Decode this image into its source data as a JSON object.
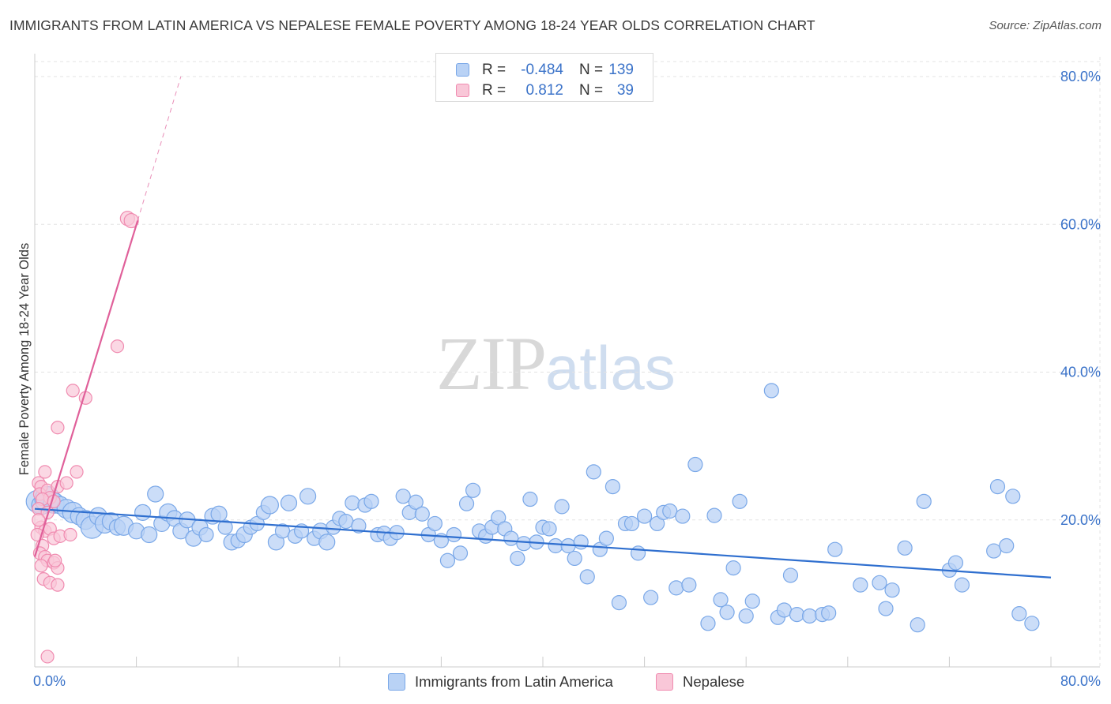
{
  "title": "IMMIGRANTS FROM LATIN AMERICA VS NEPALESE FEMALE POVERTY AMONG 18-24 YEAR OLDS CORRELATION CHART",
  "source": "Source: ZipAtlas.com",
  "watermark": {
    "zip": "ZIP",
    "atlas": "atlas"
  },
  "colors": {
    "blue": "#7aa8e8",
    "blue_line": "#2f6fcf",
    "blue_fill": "#b9d2f5",
    "pink": "#f08bb0",
    "pink_line": "#e0609a",
    "pink_fill": "#f9c7d8",
    "tick_text": "#3b73c9",
    "grid": "#e3e3e3"
  },
  "legend": {
    "rows": [
      {
        "r_label": "R =",
        "r_value": "-0.484",
        "n_label": "N =",
        "n_value": "139"
      },
      {
        "r_label": "R =",
        "r_value": "0.812",
        "n_label": "N =",
        "n_value": "39"
      }
    ]
  },
  "chart_data": {
    "type": "scatter",
    "title": "IMMIGRANTS FROM LATIN AMERICA VS NEPALESE FEMALE POVERTY AMONG 18-24 YEAR OLDS CORRELATION CHART",
    "xlabel": "",
    "ylabel": "Female Poverty Among 18-24 Year Olds",
    "xlim": [
      0,
      80
    ],
    "ylim": [
      0,
      80
    ],
    "x_tick_labels": [
      "0.0%",
      "80.0%"
    ],
    "y_tick_labels": [
      "20.0%",
      "40.0%",
      "60.0%",
      "80.0%"
    ],
    "y_ticks": [
      20,
      40,
      60,
      80
    ],
    "grid": true,
    "legend_position": "top-center",
    "series": [
      {
        "name": "Immigrants from Latin America",
        "color": "#7aa8e8",
        "r": -0.484,
        "n": 139,
        "trend": {
          "x": [
            0,
            80
          ],
          "y": [
            21.5,
            12.2
          ]
        },
        "points": [
          [
            0.2,
            22.5,
            14
          ],
          [
            0.5,
            22,
            12
          ],
          [
            1.0,
            22.8,
            16
          ],
          [
            1.5,
            22.3,
            13
          ],
          [
            2.0,
            22,
            11
          ],
          [
            2.5,
            21.5,
            12
          ],
          [
            3.0,
            21,
            13
          ],
          [
            3.5,
            20.5,
            11
          ],
          [
            4.0,
            20,
            12
          ],
          [
            4.5,
            19,
            14
          ],
          [
            5.0,
            20.5,
            11
          ],
          [
            5.5,
            19.5,
            12
          ],
          [
            6.0,
            19.8,
            11
          ],
          [
            6.5,
            19,
            10
          ],
          [
            7.0,
            19.2,
            12
          ],
          [
            8.0,
            18.5,
            10
          ],
          [
            8.5,
            21,
            10
          ],
          [
            9.0,
            18,
            10
          ],
          [
            9.5,
            23.5,
            10
          ],
          [
            10.0,
            19.5,
            10
          ],
          [
            10.5,
            21,
            11
          ],
          [
            11.0,
            20.2,
            10
          ],
          [
            11.5,
            18.5,
            10
          ],
          [
            12.0,
            20,
            10
          ],
          [
            12.5,
            17.5,
            10
          ],
          [
            13.0,
            19,
            10
          ],
          [
            13.5,
            18,
            9
          ],
          [
            14.0,
            20.5,
            10
          ],
          [
            14.5,
            20.8,
            10
          ],
          [
            15.0,
            19,
            9
          ],
          [
            15.5,
            17,
            10
          ],
          [
            16.0,
            17.2,
            9
          ],
          [
            16.5,
            18,
            10
          ],
          [
            17.0,
            19,
            9
          ],
          [
            17.5,
            19.5,
            9
          ],
          [
            18.0,
            21,
            9
          ],
          [
            18.5,
            22,
            11
          ],
          [
            19.0,
            17,
            10
          ],
          [
            19.5,
            18.5,
            9
          ],
          [
            20.0,
            22.3,
            10
          ],
          [
            20.5,
            17.8,
            9
          ],
          [
            21.0,
            18.5,
            9
          ],
          [
            21.5,
            23.2,
            10
          ],
          [
            22.0,
            17.5,
            9
          ],
          [
            22.5,
            18.5,
            10
          ],
          [
            23.0,
            17,
            10
          ],
          [
            23.5,
            19,
            9
          ],
          [
            24.0,
            20.2,
            9
          ],
          [
            24.5,
            19.8,
            9
          ],
          [
            25.0,
            22.3,
            9
          ],
          [
            25.5,
            19.2,
            9
          ],
          [
            26.0,
            22,
            9
          ],
          [
            26.5,
            22.5,
            9
          ],
          [
            27.0,
            18,
            9
          ],
          [
            27.5,
            18.2,
            9
          ],
          [
            28.0,
            17.5,
            9
          ],
          [
            28.5,
            18.3,
            9
          ],
          [
            29.0,
            23.2,
            9
          ],
          [
            29.5,
            21,
            9
          ],
          [
            30.0,
            22.4,
            9
          ],
          [
            30.5,
            20.8,
            9
          ],
          [
            31.0,
            18,
            9
          ],
          [
            31.5,
            19.5,
            9
          ],
          [
            32.0,
            17.2,
            9
          ],
          [
            32.5,
            14.5,
            9
          ],
          [
            33.0,
            18,
            9
          ],
          [
            33.5,
            15.5,
            9
          ],
          [
            34.0,
            22.2,
            9
          ],
          [
            34.5,
            24,
            9
          ],
          [
            35.0,
            18.5,
            9
          ],
          [
            35.5,
            17.8,
            9
          ],
          [
            36.0,
            19,
            9
          ],
          [
            36.5,
            20.3,
            9
          ],
          [
            37.0,
            18.8,
            9
          ],
          [
            37.5,
            17.5,
            9
          ],
          [
            38.0,
            14.8,
            9
          ],
          [
            38.5,
            16.8,
            9
          ],
          [
            39.0,
            22.8,
            9
          ],
          [
            39.5,
            17,
            9
          ],
          [
            40.0,
            19,
            9
          ],
          [
            40.5,
            18.8,
            9
          ],
          [
            41.0,
            16.5,
            9
          ],
          [
            41.5,
            21.8,
            9
          ],
          [
            42.0,
            16.5,
            9
          ],
          [
            42.5,
            14.8,
            9
          ],
          [
            43.0,
            17,
            9
          ],
          [
            43.5,
            12.3,
            9
          ],
          [
            44.0,
            26.5,
            9
          ],
          [
            44.5,
            16,
            9
          ],
          [
            45.0,
            17.5,
            9
          ],
          [
            45.5,
            24.5,
            9
          ],
          [
            46.0,
            8.8,
            9
          ],
          [
            46.5,
            19.5,
            9
          ],
          [
            47.0,
            19.5,
            9
          ],
          [
            47.5,
            15.5,
            9
          ],
          [
            48.0,
            20.5,
            9
          ],
          [
            48.5,
            9.5,
            9
          ],
          [
            49.0,
            19.5,
            9
          ],
          [
            49.5,
            21,
            9
          ],
          [
            50.0,
            21.2,
            9
          ],
          [
            50.5,
            10.8,
            9
          ],
          [
            51.0,
            20.5,
            9
          ],
          [
            51.5,
            11.2,
            9
          ],
          [
            52.0,
            27.5,
            9
          ],
          [
            53.0,
            6,
            9
          ],
          [
            53.5,
            20.6,
            9
          ],
          [
            54.0,
            9.2,
            9
          ],
          [
            54.5,
            7.5,
            9
          ],
          [
            55.0,
            13.5,
            9
          ],
          [
            55.5,
            22.5,
            9
          ],
          [
            56.0,
            7,
            9
          ],
          [
            56.5,
            9,
            9
          ],
          [
            58.0,
            37.5,
            9
          ],
          [
            58.5,
            6.8,
            9
          ],
          [
            59.0,
            7.8,
            9
          ],
          [
            59.5,
            12.5,
            9
          ],
          [
            60.0,
            7.2,
            9
          ],
          [
            61.0,
            7,
            9
          ],
          [
            62.0,
            7.2,
            9
          ],
          [
            62.5,
            7.4,
            9
          ],
          [
            63.0,
            16,
            9
          ],
          [
            65.0,
            11.2,
            9
          ],
          [
            66.5,
            11.5,
            9
          ],
          [
            67.0,
            8,
            9
          ],
          [
            67.5,
            10.5,
            9
          ],
          [
            68.5,
            16.2,
            9
          ],
          [
            69.5,
            5.8,
            9
          ],
          [
            70.0,
            22.5,
            9
          ],
          [
            72.0,
            13.2,
            9
          ],
          [
            72.5,
            14.2,
            9
          ],
          [
            73.0,
            11.2,
            9
          ],
          [
            75.5,
            15.8,
            9
          ],
          [
            75.8,
            24.5,
            9
          ],
          [
            76.5,
            16.5,
            9
          ],
          [
            77.0,
            23.2,
            9
          ],
          [
            77.5,
            7.3,
            9
          ],
          [
            78.5,
            6,
            9
          ]
        ]
      },
      {
        "name": "Nepalese",
        "color": "#f08bb0",
        "r": 0.812,
        "n": 39,
        "trend": {
          "x": [
            0,
            8.1
          ],
          "y": [
            15.0,
            60.5
          ]
        },
        "trend_dashed": {
          "x": [
            8.1,
            11.5
          ],
          "y": [
            60.5,
            80
          ]
        },
        "points": [
          [
            0.3,
            25,
            8
          ],
          [
            0.5,
            24.5,
            8
          ],
          [
            0.8,
            26.5,
            8
          ],
          [
            0.4,
            23.5,
            8
          ],
          [
            1.0,
            24,
            8
          ],
          [
            1.2,
            23,
            8
          ],
          [
            0.6,
            22.8,
            8
          ],
          [
            1.5,
            22.5,
            8
          ],
          [
            1.8,
            24.5,
            8
          ],
          [
            0.3,
            21.5,
            8
          ],
          [
            1.0,
            21,
            8
          ],
          [
            0.5,
            19,
            8
          ],
          [
            0.8,
            18.5,
            8
          ],
          [
            1.2,
            18.8,
            8
          ],
          [
            0.2,
            18,
            8
          ],
          [
            1.5,
            17.5,
            8
          ],
          [
            0.6,
            16.5,
            8
          ],
          [
            0.4,
            15.5,
            8
          ],
          [
            0.8,
            15,
            8
          ],
          [
            1.0,
            14.5,
            8
          ],
          [
            1.5,
            14.2,
            8
          ],
          [
            0.5,
            13.8,
            8
          ],
          [
            1.8,
            13.5,
            8
          ],
          [
            0.7,
            12,
            8
          ],
          [
            1.2,
            11.5,
            8
          ],
          [
            1.8,
            11.2,
            8
          ],
          [
            1.6,
            14.5,
            8
          ],
          [
            2.0,
            17.8,
            8
          ],
          [
            2.5,
            25,
            8
          ],
          [
            3.0,
            37.5,
            8
          ],
          [
            3.3,
            26.5,
            8
          ],
          [
            4.0,
            36.5,
            8
          ],
          [
            1.8,
            32.5,
            8
          ],
          [
            6.5,
            43.5,
            8
          ],
          [
            7.3,
            60.8,
            9
          ],
          [
            7.6,
            60.5,
            9
          ],
          [
            1.0,
            1.5,
            8
          ],
          [
            0.3,
            20,
            8
          ],
          [
            2.8,
            18,
            8
          ]
        ]
      }
    ]
  },
  "bottom_legend": {
    "items": [
      {
        "label": "Immigrants from Latin America"
      },
      {
        "label": "Nepalese"
      }
    ]
  }
}
